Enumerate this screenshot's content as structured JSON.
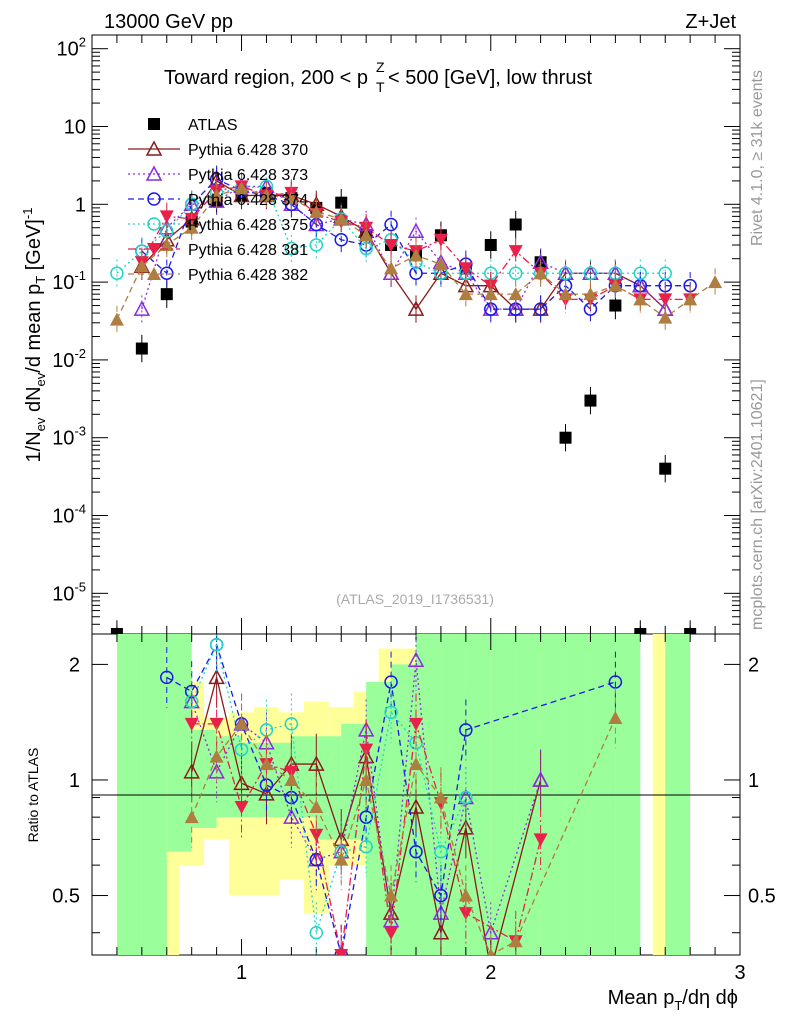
{
  "header": {
    "energy_label": "13000 GeV pp",
    "process_label": "Z+Jet"
  },
  "side_text": {
    "rivet": "Rivet 4.1.0, ≥ 31k events",
    "mcplots": "mcplots.cern.ch [arXiv:2401.10621]"
  },
  "chart_data": [
    {
      "type": "scatter",
      "panel": "main",
      "title": "Toward region, 200 < p_T^Z < 500 [GeV], low thrust",
      "analysis_label": "(ATLAS_2019_I1736531)",
      "xlabel": "Mean p_T/dη dϕ",
      "ylabel": "1/N_ev dN_ev/d mean p_T [GeV]^-1",
      "yscale": "log",
      "xlim": [
        0.4,
        3.0
      ],
      "ylim": [
        3e-06,
        150
      ],
      "x_ticks": [
        "1",
        "2",
        "3"
      ],
      "y_ticks": [
        "10^-5",
        "10^-4",
        "10^-3",
        "10^-2",
        "10^-1",
        "1",
        "10",
        "10^2"
      ],
      "legend": [
        "ATLAS",
        "Pythia 6.428 370",
        "Pythia 6.428 373",
        "Pythia 6.428 374",
        "Pythia 6.428 375",
        "Pythia 6.428 381",
        "Pythia 6.428 382"
      ],
      "series": [
        {
          "name": "ATLAS",
          "color": "#000000",
          "marker": "square",
          "dash": "none",
          "x": [
            0.5,
            0.6,
            0.7,
            0.8,
            0.9,
            1.0,
            1.1,
            1.2,
            1.3,
            1.4,
            1.5,
            1.6,
            1.7,
            1.8,
            1.9,
            2.0,
            2.1,
            2.2,
            2.3,
            2.4,
            2.5,
            2.6,
            2.7,
            2.8
          ],
          "y": [
            3e-06,
            0.014,
            0.07,
            0.6,
            1.1,
            1.3,
            1.4,
            1.2,
            0.9,
            1.05,
            0.4,
            0.3,
            0.22,
            0.4,
            0.15,
            0.3,
            0.55,
            0.18,
            0.001,
            0.003,
            0.05,
            3e-06,
            0.0004,
            3e-06
          ]
        },
        {
          "name": "Pythia 6.428 370",
          "color": "#8b1a1a",
          "marker": "triangle-open",
          "dash": "none",
          "x": [
            0.6,
            0.7,
            0.8,
            0.9,
            1.0,
            1.1,
            1.2,
            1.3,
            1.4,
            1.5,
            1.6,
            1.7,
            1.8,
            1.9,
            2.0,
            2.1,
            2.2,
            2.3,
            2.4,
            2.5,
            2.6,
            2.7
          ],
          "y": [
            0.16,
            0.35,
            0.65,
            2.0,
            1.3,
            1.3,
            1.3,
            1.0,
            0.7,
            0.45,
            0.13,
            0.045,
            0.13,
            0.09,
            0.09,
            0.045,
            0.045,
            0.13,
            0.13,
            0.13,
            0.09,
            0.045
          ]
        },
        {
          "name": "Pythia 6.428 373",
          "color": "#8a2be2",
          "marker": "triangle-open",
          "dash": "dot",
          "x": [
            0.6,
            0.7,
            0.8,
            0.9,
            1.0,
            1.1,
            1.2,
            1.3,
            1.4,
            1.5,
            1.6,
            1.7,
            1.8,
            1.9,
            2.0,
            2.1,
            2.2,
            2.3,
            2.4,
            2.5,
            2.6,
            2.7
          ],
          "y": [
            0.045,
            0.5,
            1.0,
            1.1,
            1.7,
            1.7,
            1.0,
            0.55,
            0.65,
            0.55,
            0.13,
            0.45,
            0.18,
            0.13,
            0.045,
            0.045,
            0.18,
            0.13,
            0.13,
            0.13,
            0.09,
            0.045
          ]
        },
        {
          "name": "Pythia 6.428 374",
          "color": "#1a1ae6",
          "marker": "circle-open",
          "dash": "dash",
          "x": [
            0.6,
            0.7,
            0.8,
            0.9,
            1.0,
            1.1,
            1.2,
            1.3,
            1.4,
            1.5,
            1.6,
            1.7,
            1.8,
            1.9,
            2.0,
            2.1,
            2.2,
            2.3,
            2.4,
            2.5,
            2.6,
            2.7,
            2.8
          ],
          "y": [
            0.25,
            0.13,
            1.0,
            2.1,
            1.5,
            1.3,
            1.0,
            0.55,
            0.35,
            0.3,
            0.55,
            0.13,
            0.13,
            0.17,
            0.045,
            0.045,
            0.045,
            0.09,
            0.045,
            0.09,
            0.09,
            0.09,
            0.09
          ]
        },
        {
          "name": "Pythia 6.428 375",
          "color": "#20d4c8",
          "marker": "circle-open",
          "dash": "dot",
          "x": [
            0.5,
            0.6,
            0.7,
            0.8,
            0.9,
            1.0,
            1.1,
            1.2,
            1.3,
            1.4,
            1.5,
            1.6,
            1.7,
            1.8,
            1.9,
            2.0,
            2.1,
            2.2,
            2.3,
            2.4,
            2.5,
            2.6,
            2.7
          ],
          "y": [
            0.13,
            0.25,
            0.45,
            1.0,
            1.4,
            1.6,
            1.7,
            0.27,
            0.3,
            0.65,
            0.27,
            0.35,
            0.18,
            0.13,
            0.13,
            0.13,
            0.13,
            0.13,
            0.13,
            0.13,
            0.13,
            0.13,
            0.13
          ]
        },
        {
          "name": "Pythia 6.428 381",
          "color": "#e8204a",
          "marker": "triangle-down-filled",
          "dash": "dashdot",
          "x": [
            0.6,
            0.7,
            0.8,
            0.9,
            1.0,
            1.1,
            1.2,
            1.3,
            1.4,
            1.5,
            1.6,
            1.7,
            1.8,
            1.9,
            2.0,
            2.1,
            2.2,
            2.3,
            2.4,
            2.5,
            2.6,
            2.7,
            2.8
          ],
          "y": [
            0.18,
            0.7,
            0.65,
            1.5,
            1.7,
            1.3,
            1.4,
            0.75,
            0.6,
            0.5,
            0.3,
            0.25,
            0.35,
            0.15,
            0.09,
            0.25,
            0.13,
            0.06,
            0.06,
            0.09,
            0.06,
            0.06,
            0.06
          ]
        },
        {
          "name": "Pythia 6.428 382",
          "color": "#b07d40",
          "marker": "triangle-filled",
          "dash": "dash",
          "x": [
            0.5,
            0.6,
            0.7,
            0.8,
            0.9,
            1.0,
            1.1,
            1.2,
            1.3,
            1.4,
            1.5,
            1.6,
            1.7,
            1.8,
            1.9,
            2.0,
            2.1,
            2.2,
            2.3,
            2.4,
            2.5,
            2.6,
            2.7,
            2.8,
            2.9
          ],
          "y": [
            0.033,
            0.16,
            0.3,
            0.5,
            1.3,
            1.6,
            1.3,
            1.2,
            0.8,
            0.65,
            0.4,
            0.15,
            0.22,
            0.17,
            0.07,
            0.07,
            0.07,
            0.13,
            0.07,
            0.07,
            0.09,
            0.06,
            0.035,
            0.06,
            0.1
          ]
        }
      ]
    },
    {
      "type": "scatter",
      "panel": "ratio",
      "ylabel": "Ratio to ATLAS",
      "xlim": [
        0.4,
        3.0
      ],
      "ylim": [
        0.35,
        2.4
      ],
      "yscale": "log",
      "y_ticks": [
        "0.5",
        "1",
        "2"
      ],
      "reference_line": 1,
      "uncertainty_band_colors": {
        "stat": "#9aff9a",
        "syst": "#ffff99"
      },
      "series": [
        {
          "name": "Pythia 6.428 370",
          "x": [
            0.8,
            0.9,
            1.0,
            1.1,
            1.2,
            1.3,
            1.4,
            1.5,
            1.6,
            1.7,
            1.8,
            1.9,
            2.0,
            2.2
          ],
          "y": [
            1.05,
            1.85,
            0.98,
            0.92,
            1.1,
            1.1,
            0.7,
            1.15,
            0.45,
            0.85,
            0.4,
            0.75,
            0.32,
            1.0
          ]
        },
        {
          "name": "Pythia 6.428 373",
          "x": [
            0.8,
            0.9,
            1.0,
            1.1,
            1.2,
            1.3,
            1.4,
            1.5,
            1.6,
            1.7,
            1.8,
            1.9,
            2.0,
            2.2
          ],
          "y": [
            1.6,
            1.05,
            1.4,
            1.25,
            0.8,
            0.62,
            0.65,
            1.35,
            0.43,
            2.05,
            0.45,
            0.9,
            0.4,
            1.0
          ]
        },
        {
          "name": "Pythia 6.428 374",
          "x": [
            0.7,
            0.8,
            0.9,
            1.0,
            1.1,
            1.2,
            1.3,
            1.4,
            1.5,
            1.6,
            1.7,
            1.8,
            1.9,
            2.5
          ],
          "y": [
            1.85,
            1.7,
            2.25,
            1.4,
            0.97,
            0.9,
            0.62,
            0.35,
            0.8,
            1.8,
            0.65,
            0.5,
            1.35,
            1.8
          ]
        },
        {
          "name": "Pythia 6.428 375",
          "x": [
            0.8,
            0.9,
            1.0,
            1.1,
            1.2,
            1.3,
            1.4,
            1.5,
            1.6,
            1.7,
            1.8,
            1.9
          ],
          "y": [
            1.6,
            2.25,
            1.2,
            1.35,
            1.4,
            0.4,
            0.65,
            0.67,
            1.5,
            1.25,
            0.65,
            0.9
          ]
        },
        {
          "name": "Pythia 6.428 381",
          "x": [
            0.8,
            0.9,
            1.0,
            1.1,
            1.2,
            1.3,
            1.4,
            1.5,
            1.6,
            1.7,
            1.8,
            1.9,
            2.1,
            2.2
          ],
          "y": [
            1.4,
            1.4,
            0.85,
            1.1,
            1.05,
            0.72,
            0.35,
            1.2,
            0.4,
            1.4,
            0.87,
            0.45,
            0.38,
            0.7
          ]
        },
        {
          "name": "Pythia 6.428 382",
          "x": [
            0.8,
            0.9,
            1.0,
            1.1,
            1.2,
            1.3,
            1.4,
            1.5,
            1.6,
            1.7,
            1.8,
            1.9,
            2.0,
            2.1,
            2.5
          ],
          "y": [
            0.8,
            1.15,
            1.4,
            1.1,
            1.0,
            0.85,
            0.62,
            1.0,
            0.5,
            1.1,
            0.9,
            0.5,
            0.35,
            0.38,
            1.45
          ]
        }
      ]
    }
  ]
}
